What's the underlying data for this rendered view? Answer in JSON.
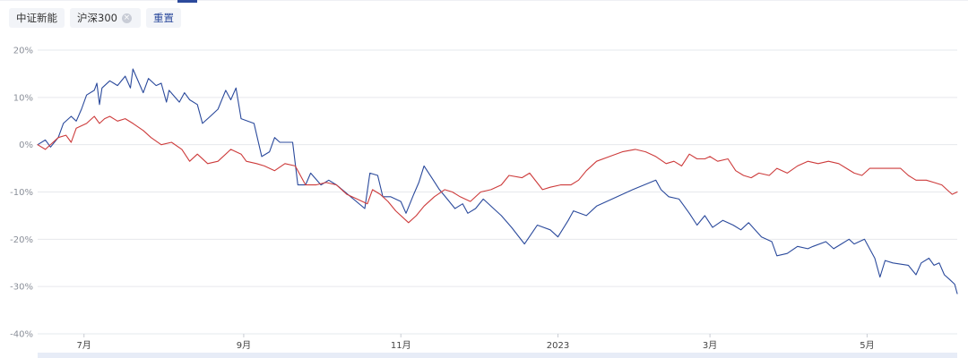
{
  "toolbar": {
    "stock_label": "中证新能",
    "index_label": "沪深300",
    "remove_icon": "close-icon",
    "reset_label": "重置"
  },
  "chart_data": {
    "type": "line",
    "y_unit": "%",
    "ylim": [
      -40,
      20
    ],
    "y_ticks": [
      20,
      10,
      0,
      -10,
      -20,
      -30,
      -40
    ],
    "y_tick_labels": [
      "20%",
      "10%",
      "0%",
      "-10%",
      "-20%",
      "-30%",
      "-40%"
    ],
    "xlim": [
      "2022-06-13",
      "2023-06-05"
    ],
    "x_tick_dates": [
      "2022-07-01",
      "2022-09-01",
      "2022-11-01",
      "2023-01-01",
      "2023-03-01",
      "2023-05-01"
    ],
    "x_tick_labels": [
      "7月",
      "9月",
      "11月",
      "2023",
      "3月",
      "5月"
    ],
    "grid": true,
    "legend": "none",
    "series": [
      {
        "color": "#2b4a9c",
        "points": [
          [
            "2022-06-13",
            0
          ],
          [
            "2022-06-16",
            1
          ],
          [
            "2022-06-18",
            -0.5
          ],
          [
            "2022-06-21",
            1.5
          ],
          [
            "2022-06-23",
            4.5
          ],
          [
            "2022-06-26",
            6
          ],
          [
            "2022-06-28",
            5
          ],
          [
            "2022-06-30",
            7.5
          ],
          [
            "2022-07-02",
            10.5
          ],
          [
            "2022-07-05",
            11.5
          ],
          [
            "2022-07-06",
            13
          ],
          [
            "2022-07-07",
            8.5
          ],
          [
            "2022-07-08",
            12
          ],
          [
            "2022-07-11",
            13.5
          ],
          [
            "2022-07-14",
            12.5
          ],
          [
            "2022-07-17",
            14.5
          ],
          [
            "2022-07-19",
            12
          ],
          [
            "2022-07-20",
            16
          ],
          [
            "2022-07-24",
            11
          ],
          [
            "2022-07-26",
            14
          ],
          [
            "2022-07-29",
            12.5
          ],
          [
            "2022-07-31",
            13
          ],
          [
            "2022-08-02",
            9
          ],
          [
            "2022-08-03",
            11.5
          ],
          [
            "2022-08-07",
            9
          ],
          [
            "2022-08-09",
            11
          ],
          [
            "2022-08-11",
            9.5
          ],
          [
            "2022-08-14",
            8.5
          ],
          [
            "2022-08-16",
            4.5
          ],
          [
            "2022-08-19",
            6
          ],
          [
            "2022-08-22",
            7.5
          ],
          [
            "2022-08-25",
            11.5
          ],
          [
            "2022-08-27",
            9.5
          ],
          [
            "2022-08-29",
            12
          ],
          [
            "2022-08-31",
            5.5
          ],
          [
            "2022-09-05",
            4.5
          ],
          [
            "2022-09-08",
            -2.5
          ],
          [
            "2022-09-11",
            -1.5
          ],
          [
            "2022-09-13",
            1.5
          ],
          [
            "2022-09-15",
            0.5
          ],
          [
            "2022-09-20",
            0.5
          ],
          [
            "2022-09-22",
            -8.5
          ],
          [
            "2022-09-25",
            -8.5
          ],
          [
            "2022-09-27",
            -6
          ],
          [
            "2022-10-01",
            -8.5
          ],
          [
            "2022-10-04",
            -7.5
          ],
          [
            "2022-10-07",
            -8.5
          ],
          [
            "2022-10-18",
            -13.5
          ],
          [
            "2022-10-20",
            -6
          ],
          [
            "2022-10-23",
            -6.5
          ],
          [
            "2022-10-25",
            -11
          ],
          [
            "2022-10-28",
            -11
          ],
          [
            "2022-11-01",
            -12
          ],
          [
            "2022-11-03",
            -14.5
          ],
          [
            "2022-11-06",
            -10.5
          ],
          [
            "2022-11-08",
            -8
          ],
          [
            "2022-11-10",
            -4.5
          ],
          [
            "2022-11-13",
            -7
          ],
          [
            "2022-11-16",
            -9.5
          ],
          [
            "2022-11-19",
            -11.5
          ],
          [
            "2022-11-22",
            -13.5
          ],
          [
            "2022-11-25",
            -12.5
          ],
          [
            "2022-11-27",
            -14.5
          ],
          [
            "2022-11-30",
            -13.5
          ],
          [
            "2022-12-03",
            -11.5
          ],
          [
            "2022-12-07",
            -13.5
          ],
          [
            "2022-12-10",
            -15
          ],
          [
            "2022-12-14",
            -17.5
          ],
          [
            "2022-12-19",
            -21
          ],
          [
            "2022-12-24",
            -17
          ],
          [
            "2022-12-29",
            -18
          ],
          [
            "2023-01-01",
            -19.5
          ],
          [
            "2023-01-05",
            -16
          ],
          [
            "2023-01-07",
            -14
          ],
          [
            "2023-01-12",
            -15
          ],
          [
            "2023-01-16",
            -13
          ],
          [
            "2023-01-30",
            -9.5
          ],
          [
            "2023-02-08",
            -7.5
          ],
          [
            "2023-02-10",
            -9.5
          ],
          [
            "2023-02-13",
            -11
          ],
          [
            "2023-02-17",
            -11.5
          ],
          [
            "2023-02-21",
            -14.5
          ],
          [
            "2023-02-24",
            -17
          ],
          [
            "2023-02-27",
            -15
          ],
          [
            "2023-03-02",
            -17.5
          ],
          [
            "2023-03-06",
            -16
          ],
          [
            "2023-03-10",
            -17
          ],
          [
            "2023-03-13",
            -18
          ],
          [
            "2023-03-16",
            -16.5
          ],
          [
            "2023-03-21",
            -19.5
          ],
          [
            "2023-03-25",
            -20.5
          ],
          [
            "2023-03-27",
            -23.5
          ],
          [
            "2023-03-31",
            -23
          ],
          [
            "2023-04-04",
            -21.5
          ],
          [
            "2023-04-08",
            -22
          ],
          [
            "2023-04-10",
            -21.5
          ],
          [
            "2023-04-15",
            -20.5
          ],
          [
            "2023-04-18",
            -22
          ],
          [
            "2023-04-21",
            -21
          ],
          [
            "2023-04-24",
            -20
          ],
          [
            "2023-04-26",
            -21
          ],
          [
            "2023-04-30",
            -20
          ],
          [
            "2023-05-04",
            -24
          ],
          [
            "2023-05-06",
            -28
          ],
          [
            "2023-05-08",
            -24.5
          ],
          [
            "2023-05-11",
            -25
          ],
          [
            "2023-05-17",
            -25.5
          ],
          [
            "2023-05-20",
            -27.5
          ],
          [
            "2023-05-22",
            -25
          ],
          [
            "2023-05-25",
            -24
          ],
          [
            "2023-05-27",
            -25.5
          ],
          [
            "2023-05-29",
            -25
          ],
          [
            "2023-05-31",
            -27.5
          ],
          [
            "2023-06-02",
            -28.5
          ],
          [
            "2023-06-04",
            -29.5
          ],
          [
            "2023-06-05",
            -31.5
          ]
        ]
      },
      {
        "color": "#cd3b3b",
        "points": [
          [
            "2022-06-13",
            0
          ],
          [
            "2022-06-16",
            -1
          ],
          [
            "2022-06-19",
            0.5
          ],
          [
            "2022-06-21",
            1.5
          ],
          [
            "2022-06-24",
            2
          ],
          [
            "2022-06-26",
            0.5
          ],
          [
            "2022-06-28",
            3.5
          ],
          [
            "2022-07-02",
            4.5
          ],
          [
            "2022-07-05",
            6
          ],
          [
            "2022-07-07",
            4.5
          ],
          [
            "2022-07-09",
            5.5
          ],
          [
            "2022-07-11",
            6
          ],
          [
            "2022-07-14",
            5
          ],
          [
            "2022-07-17",
            5.5
          ],
          [
            "2022-07-20",
            4.5
          ],
          [
            "2022-07-24",
            3
          ],
          [
            "2022-07-27",
            1.5
          ],
          [
            "2022-07-31",
            0
          ],
          [
            "2022-08-04",
            0.5
          ],
          [
            "2022-08-08",
            -1
          ],
          [
            "2022-08-11",
            -3.5
          ],
          [
            "2022-08-14",
            -2
          ],
          [
            "2022-08-18",
            -4
          ],
          [
            "2022-08-22",
            -3.5
          ],
          [
            "2022-08-27",
            -1
          ],
          [
            "2022-08-31",
            -2
          ],
          [
            "2022-09-02",
            -3.5
          ],
          [
            "2022-09-06",
            -4
          ],
          [
            "2022-09-09",
            -4.5
          ],
          [
            "2022-09-13",
            -5.5
          ],
          [
            "2022-09-17",
            -4
          ],
          [
            "2022-09-21",
            -4.5
          ],
          [
            "2022-09-25",
            -8.5
          ],
          [
            "2022-09-29",
            -8.5
          ],
          [
            "2022-10-03",
            -8
          ],
          [
            "2022-10-07",
            -8.5
          ],
          [
            "2022-10-11",
            -10.5
          ],
          [
            "2022-10-15",
            -11.5
          ],
          [
            "2022-10-19",
            -12.5
          ],
          [
            "2022-10-21",
            -9.5
          ],
          [
            "2022-10-24",
            -10.5
          ],
          [
            "2022-10-27",
            -12
          ],
          [
            "2022-10-30",
            -14
          ],
          [
            "2022-11-04",
            -16.5
          ],
          [
            "2022-11-07",
            -15
          ],
          [
            "2022-11-10",
            -13
          ],
          [
            "2022-11-14",
            -11
          ],
          [
            "2022-11-18",
            -9.5
          ],
          [
            "2022-11-21",
            -10
          ],
          [
            "2022-11-24",
            -11
          ],
          [
            "2022-11-28",
            -12
          ],
          [
            "2022-12-02",
            -10
          ],
          [
            "2022-12-06",
            -9.5
          ],
          [
            "2022-12-10",
            -8.5
          ],
          [
            "2022-12-13",
            -6.5
          ],
          [
            "2022-12-18",
            -7
          ],
          [
            "2022-12-21",
            -6
          ],
          [
            "2022-12-26",
            -9.5
          ],
          [
            "2022-12-29",
            -9
          ],
          [
            "2023-01-02",
            -8.5
          ],
          [
            "2023-01-06",
            -8.5
          ],
          [
            "2023-01-09",
            -7.5
          ],
          [
            "2023-01-12",
            -5.5
          ],
          [
            "2023-01-16",
            -3.5
          ],
          [
            "2023-01-21",
            -2.5
          ],
          [
            "2023-01-26",
            -1.5
          ],
          [
            "2023-01-31",
            -1
          ],
          [
            "2023-02-04",
            -1.5
          ],
          [
            "2023-02-08",
            -2.5
          ],
          [
            "2023-02-12",
            -4
          ],
          [
            "2023-02-15",
            -3.5
          ],
          [
            "2023-02-18",
            -4.5
          ],
          [
            "2023-02-21",
            -2
          ],
          [
            "2023-02-24",
            -3
          ],
          [
            "2023-02-27",
            -3
          ],
          [
            "2023-03-01",
            -2.5
          ],
          [
            "2023-03-04",
            -3.5
          ],
          [
            "2023-03-08",
            -3
          ],
          [
            "2023-03-11",
            -5.5
          ],
          [
            "2023-03-14",
            -6.5
          ],
          [
            "2023-03-17",
            -7
          ],
          [
            "2023-03-20",
            -6
          ],
          [
            "2023-03-24",
            -6.5
          ],
          [
            "2023-03-27",
            -5
          ],
          [
            "2023-03-31",
            -6
          ],
          [
            "2023-04-04",
            -4.5
          ],
          [
            "2023-04-08",
            -3.5
          ],
          [
            "2023-04-12",
            -4
          ],
          [
            "2023-04-16",
            -3.5
          ],
          [
            "2023-04-20",
            -4
          ],
          [
            "2023-04-23",
            -5
          ],
          [
            "2023-04-26",
            -6
          ],
          [
            "2023-04-29",
            -6.5
          ],
          [
            "2023-05-02",
            -5
          ],
          [
            "2023-05-06",
            -5
          ],
          [
            "2023-05-10",
            -5
          ],
          [
            "2023-05-14",
            -5
          ],
          [
            "2023-05-17",
            -6.5
          ],
          [
            "2023-05-20",
            -7.5
          ],
          [
            "2023-05-24",
            -7.5
          ],
          [
            "2023-05-27",
            -8
          ],
          [
            "2023-05-30",
            -8.5
          ],
          [
            "2023-06-01",
            -9.5
          ],
          [
            "2023-06-03",
            -10.5
          ],
          [
            "2023-06-05",
            -10
          ]
        ]
      }
    ]
  }
}
